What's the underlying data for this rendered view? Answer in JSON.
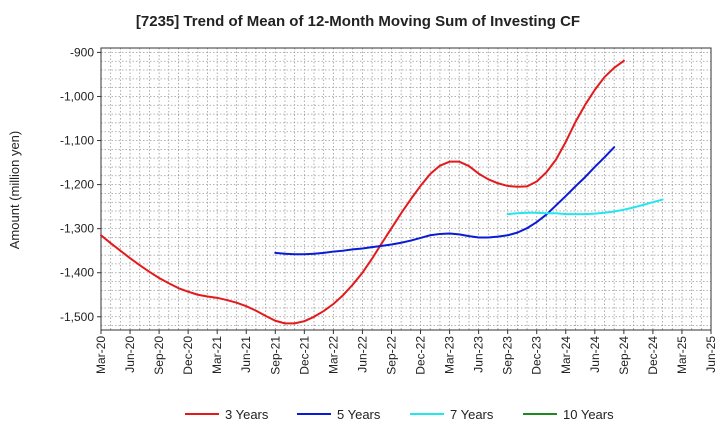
{
  "chart_data": {
    "type": "line",
    "title": "[7235]  Trend of Mean of 12-Month Moving Sum of Investing CF",
    "xlabel": "",
    "ylabel": "Amount (million yen)",
    "ylim": [
      -1530,
      -890
    ],
    "yticks": [
      -900,
      -1000,
      -1100,
      -1200,
      -1300,
      -1400,
      -1500
    ],
    "ytick_labels": [
      "-900",
      "-1,000",
      "-1,100",
      "-1,200",
      "-1,300",
      "-1,400",
      "-1,500"
    ],
    "xticks": [
      "Mar-20",
      "Jun-20",
      "Sep-20",
      "Dec-20",
      "Mar-21",
      "Jun-21",
      "Sep-21",
      "Dec-21",
      "Mar-22",
      "Jun-22",
      "Sep-22",
      "Dec-22",
      "Mar-23",
      "Jun-23",
      "Sep-23",
      "Dec-23",
      "Mar-24",
      "Jun-24",
      "Sep-24",
      "Dec-24",
      "Mar-25",
      "Jun-25"
    ],
    "x_months_total": 63,
    "grid": true,
    "legend_position": "bottom",
    "series": [
      {
        "name": "3 Years",
        "color": "#e31a1c",
        "start_index": 0,
        "values": [
          -1315,
          -1333,
          -1350,
          -1367,
          -1383,
          -1398,
          -1412,
          -1424,
          -1435,
          -1443,
          -1450,
          -1454,
          -1457,
          -1462,
          -1468,
          -1476,
          -1486,
          -1498,
          -1509,
          -1515,
          -1515,
          -1510,
          -1500,
          -1487,
          -1471,
          -1451,
          -1427,
          -1400,
          -1368,
          -1333,
          -1299,
          -1265,
          -1233,
          -1203,
          -1176,
          -1157,
          -1148,
          -1148,
          -1158,
          -1175,
          -1188,
          -1197,
          -1203,
          -1205,
          -1204,
          -1193,
          -1172,
          -1143,
          -1103,
          -1058,
          -1019,
          -985,
          -956,
          -935,
          -919
        ]
      },
      {
        "name": "5 Years",
        "color": "#0a1bd6",
        "start_index": 18,
        "values": [
          -1355,
          -1357,
          -1358,
          -1358,
          -1357,
          -1355,
          -1352,
          -1350,
          -1347,
          -1345,
          -1342,
          -1339,
          -1336,
          -1332,
          -1327,
          -1321,
          -1315,
          -1312,
          -1311,
          -1313,
          -1317,
          -1320,
          -1320,
          -1318,
          -1315,
          -1309,
          -1299,
          -1285,
          -1268,
          -1247,
          -1226,
          -1204,
          -1183,
          -1160,
          -1138,
          -1115
        ]
      },
      {
        "name": "7 Years",
        "color": "#22e6f0",
        "start_index": 42,
        "values": [
          -1267,
          -1265,
          -1264,
          -1264,
          -1265,
          -1265,
          -1267,
          -1267,
          -1267,
          -1266,
          -1264,
          -1261,
          -1257,
          -1252,
          -1246,
          -1240,
          -1234
        ]
      },
      {
        "name": "10 Years",
        "color": "#1e8a1e",
        "start_index": 0,
        "values": []
      }
    ]
  }
}
